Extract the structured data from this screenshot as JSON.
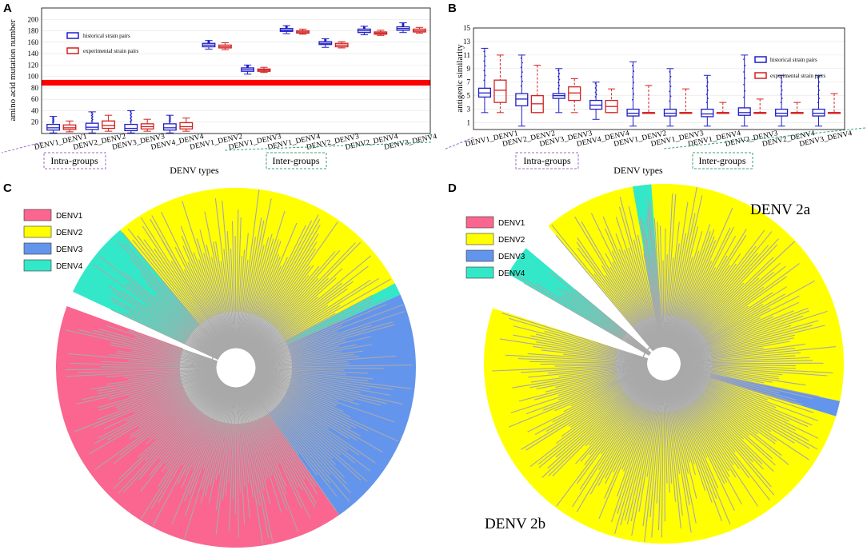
{
  "panels": {
    "A": {
      "letter": "A"
    },
    "B": {
      "letter": "B"
    },
    "C": {
      "letter": "C"
    },
    "D": {
      "letter": "D"
    }
  },
  "colors": {
    "historical": "#1f1fc8",
    "experimental": "#d42020",
    "threshold_band": "#ff0000",
    "intra_box": "#9b6bc9",
    "inter_box": "#3aa373",
    "DENV1": "#fa6690",
    "DENV2": "#ffff00",
    "DENV3": "#6495ed",
    "DENV4": "#33e8c8",
    "branches": "#a9a9a9"
  },
  "chart_data": [
    {
      "id": "A",
      "type": "boxplot",
      "ylabel": "amino acid mutation number",
      "xlabel": "DENV types",
      "ylim": [
        0,
        220
      ],
      "yticks": [
        "20",
        "40",
        "60",
        "80",
        "100",
        "120",
        "140",
        "160",
        "180",
        "200"
      ],
      "yticks_values": [
        20,
        40,
        60,
        80,
        100,
        120,
        140,
        160,
        180,
        200
      ],
      "threshold_band": [
        84,
        94
      ],
      "legend": [
        "historical strain pairs",
        "experimental strain pairs"
      ],
      "groups": {
        "intra": "Intra-groups",
        "inter": "Inter-groups"
      },
      "categories": [
        "DENV1_DENV1",
        "DENV2_DENV2",
        "DENV3_DENV3",
        "DENV4_DENV4",
        "DENV1_DENV2",
        "DENV1_DENV3",
        "DENV1_DENV4",
        "DENV2_DENV3",
        "DENV2_DENV4",
        "DENV3_DENV4"
      ],
      "series": [
        {
          "name": "historical strain pairs",
          "boxes": [
            [
              1,
              6,
              10,
              16,
              30
            ],
            [
              1,
              7,
              11,
              18,
              38
            ],
            [
              1,
              5,
              9,
              16,
              40
            ],
            [
              1,
              6,
              10,
              17,
              32
            ],
            [
              148,
              152,
              155,
              158,
              163
            ],
            [
              104,
              109,
              112,
              115,
              120
            ],
            [
              175,
              179,
              181,
              184,
              189
            ],
            [
              151,
              156,
              158,
              161,
              166
            ],
            [
              173,
              177,
              180,
              183,
              188
            ],
            [
              177,
              181,
              184,
              187,
              194
            ]
          ]
        },
        {
          "name": "experimental strain pairs",
          "boxes": [
            [
              3,
              7,
              10,
              15,
              22
            ],
            [
              4,
              9,
              14,
              22,
              32
            ],
            [
              4,
              8,
              12,
              17,
              25
            ],
            [
              4,
              8,
              12,
              19,
              27
            ],
            [
              147,
              150,
              152,
              155,
              159
            ],
            [
              107,
              109,
              111,
              113,
              116
            ],
            [
              174,
              176,
              178,
              180,
              183
            ],
            [
              150,
              152,
              155,
              158,
              161
            ],
            [
              172,
              174,
              176,
              178,
              181
            ],
            [
              176,
              178,
              180,
              183,
              186
            ]
          ]
        }
      ]
    },
    {
      "id": "B",
      "type": "boxplot",
      "ylabel": "antigenic similarity",
      "xlabel": "DENV types",
      "ylim": [
        0,
        15
      ],
      "yticks": [
        "1",
        "3",
        "5",
        "7",
        "9",
        "11",
        "13",
        "15"
      ],
      "yticks_values": [
        1,
        3,
        5,
        7,
        9,
        11,
        13,
        15
      ],
      "legend": [
        "historical strain pairs",
        "experimental strain pairs"
      ],
      "groups": {
        "intra": "Intra-groups",
        "inter": "Inter-groups"
      },
      "categories": [
        "DENV1_DENV1",
        "DENV2_DENV2",
        "DENV3_DENV3",
        "DENV4_DENV4",
        "DENV1_DENV2",
        "DENV1_DENV3",
        "DENV1_DENV4",
        "DENV2_DENV3",
        "DENV2_DENV4",
        "DENV3_DENV4"
      ],
      "series": [
        {
          "name": "historical strain pairs",
          "boxes": [
            [
              2.5,
              4.8,
              5.4,
              6.1,
              12
            ],
            [
              0.5,
              3.5,
              4.5,
              5.3,
              11
            ],
            [
              2.5,
              4.6,
              5.0,
              5.3,
              9
            ],
            [
              1.5,
              3.0,
              3.6,
              4.3,
              7
            ],
            [
              0.5,
              2.0,
              2.4,
              3.0,
              10
            ],
            [
              0.5,
              2.0,
              2.4,
              3.0,
              9
            ],
            [
              0.5,
              1.9,
              2.3,
              3.0,
              8
            ],
            [
              0.5,
              2.1,
              2.5,
              3.2,
              11
            ],
            [
              0.5,
              2.0,
              2.4,
              3.0,
              8
            ],
            [
              0.5,
              2.0,
              2.4,
              3.0,
              8
            ]
          ]
        },
        {
          "name": "experimental strain pairs",
          "boxes": [
            [
              2.5,
              4.0,
              5.8,
              7.3,
              11
            ],
            [
              2.5,
              2.5,
              3.8,
              5.0,
              9.5
            ],
            [
              2.5,
              4.3,
              5.4,
              6.3,
              7.5
            ],
            [
              2.5,
              2.5,
              3.4,
              4.3,
              6
            ],
            [
              2.5,
              2.5,
              2.5,
              2.5,
              6.5
            ],
            [
              2.5,
              2.5,
              2.5,
              2.5,
              6
            ],
            [
              2.5,
              2.5,
              2.5,
              2.5,
              4
            ],
            [
              2.5,
              2.5,
              2.5,
              2.5,
              4.5
            ],
            [
              2.5,
              2.5,
              2.5,
              2.5,
              4
            ],
            [
              2.5,
              2.5,
              2.5,
              2.5,
              5.3
            ]
          ]
        }
      ]
    },
    {
      "id": "C",
      "type": "circular-phylogeny",
      "legend": [
        "DENV1",
        "DENV2",
        "DENV3",
        "DENV4"
      ],
      "sectors": [
        {
          "label": "DENV2",
          "start": -30,
          "end": 62
        },
        {
          "label": "DENV4",
          "start": 62,
          "end": 66
        },
        {
          "label": "DENV3",
          "start": 66,
          "end": 145
        },
        {
          "label": "DENV1",
          "start": 145,
          "end": 290
        },
        {
          "label": "DENV4",
          "start": 295,
          "end": 320
        },
        {
          "label": "DENV2",
          "start": 320,
          "end": 330
        }
      ]
    },
    {
      "id": "D",
      "type": "circular-phylogeny",
      "legend": [
        "DENV1",
        "DENV2",
        "DENV3",
        "DENV4"
      ],
      "clades": [
        "DENV 2a",
        "DENV 2b"
      ],
      "sectors": [
        {
          "label": "DENV2",
          "start": -40,
          "end": 102
        },
        {
          "label": "DENV3",
          "start": 102,
          "end": 107
        },
        {
          "label": "DENV2",
          "start": 107,
          "end": 288
        },
        {
          "label": "DENV4",
          "start": 300,
          "end": 310
        },
        {
          "label": "DENV4",
          "start": 350,
          "end": 356
        }
      ]
    }
  ]
}
